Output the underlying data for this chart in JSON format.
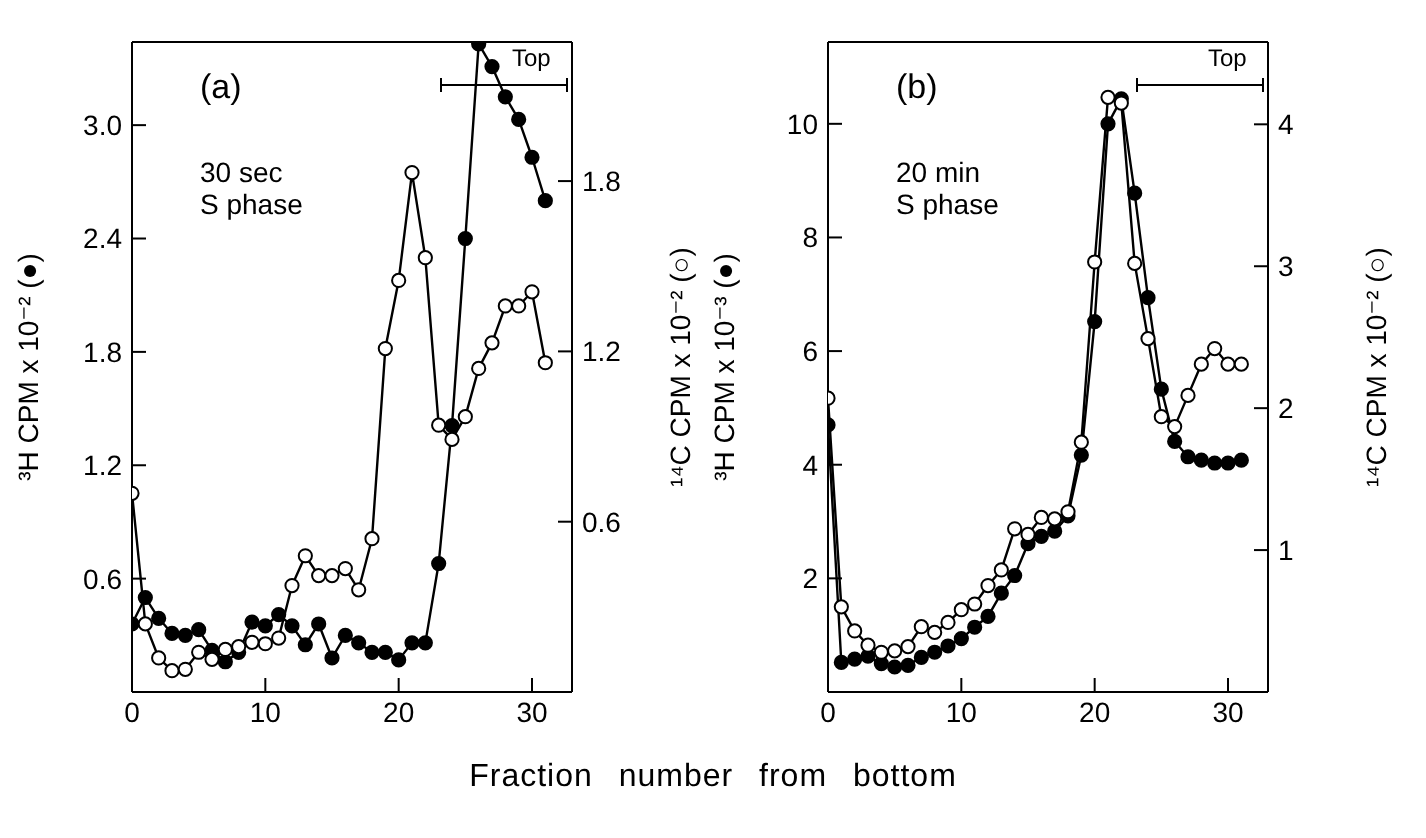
{
  "chart_data": [
    {
      "type": "line",
      "xlabel": "Fraction number from bottom",
      "ylabel": "³H CPM x 10⁻² (●)",
      "y2label": "¹⁴C CPM x 10⁻² (○)",
      "annotations": [
        "(a)",
        "30 sec\nS phase",
        "Top"
      ],
      "marker": "circle",
      "x": [
        0,
        1,
        2,
        3,
        4,
        5,
        6,
        7,
        8,
        9,
        10,
        11,
        12,
        13,
        14,
        15,
        16,
        17,
        18,
        19,
        20,
        21,
        22,
        23,
        24,
        25,
        26,
        27,
        28,
        29,
        30,
        31
      ],
      "series": [
        {
          "color": "#000000",
          "values": [
            0.36,
            0.5,
            0.39,
            0.31,
            0.3,
            0.33,
            0.22,
            0.16,
            0.21,
            0.37,
            0.35,
            0.41,
            0.35,
            0.25,
            0.36,
            0.18,
            0.3,
            0.26,
            0.21,
            0.21,
            0.17,
            0.26,
            0.26,
            0.68,
            1.41,
            2.4,
            3.43,
            3.31,
            3.15,
            3.03,
            2.83,
            2.6
          ]
        },
        {
          "color": "#000000",
          "axis": "y2",
          "values": [
            0.7,
            0.24,
            0.12,
            0.075,
            0.08,
            0.14,
            0.115,
            0.15,
            0.16,
            0.175,
            0.17,
            0.19,
            0.375,
            0.48,
            0.41,
            0.41,
            0.435,
            0.36,
            0.54,
            1.21,
            1.45,
            1.83,
            1.53,
            0.94,
            0.89,
            0.97,
            1.14,
            1.23,
            1.36,
            1.36,
            1.41,
            1.16
          ]
        }
      ],
      "xlim": [
        0,
        33
      ],
      "xticks": [
        0,
        10,
        20,
        30
      ],
      "ylim": [
        0,
        3.44
      ],
      "yticks": [
        0.6,
        1.2,
        1.8,
        2.4,
        {
          "value": 3,
          "label": "3.0"
        }
      ],
      "y2lim": [
        0,
        2.29
      ],
      "y2ticks": [
        0.6,
        1.2,
        1.8
      ]
    },
    {
      "type": "line",
      "ylabel": "³H CPM x 10⁻³ (●)",
      "y2label": "¹⁴C CPM x 10⁻² (○)",
      "annotations": [
        "(b)",
        "20 min\nS phase",
        "Top"
      ],
      "marker": "circle",
      "x": [
        0,
        1,
        2,
        3,
        4,
        5,
        6,
        7,
        8,
        9,
        10,
        11,
        12,
        13,
        14,
        15,
        16,
        17,
        18,
        19,
        20,
        21,
        22,
        23,
        24,
        25,
        26,
        27,
        28,
        29,
        30,
        31
      ],
      "series": [
        {
          "color": "#000000",
          "values": [
            4.7,
            0.52,
            0.58,
            0.63,
            0.5,
            0.44,
            0.47,
            0.61,
            0.7,
            0.81,
            0.94,
            1.14,
            1.33,
            1.74,
            2.05,
            2.61,
            2.74,
            2.83,
            3.1,
            4.17,
            6.52,
            10.0,
            10.44,
            8.78,
            6.94,
            5.33,
            4.41,
            4.14,
            4.08,
            4.03,
            4.03,
            4.08
          ]
        },
        {
          "color": "#000000",
          "axis": "y2",
          "values": [
            2.07,
            0.6,
            0.43,
            0.33,
            0.28,
            0.29,
            0.32,
            0.46,
            0.42,
            0.49,
            0.58,
            0.62,
            0.75,
            0.86,
            1.15,
            1.11,
            1.23,
            1.22,
            1.27,
            1.76,
            3.03,
            4.19,
            4.15,
            3.02,
            2.49,
            1.94,
            1.87,
            2.09,
            2.31,
            2.42,
            2.31,
            2.31
          ]
        }
      ],
      "xlim": [
        0,
        33
      ],
      "xticks": [
        0,
        10,
        20,
        30
      ],
      "ylim": [
        0,
        11.44
      ],
      "yticks": [
        2,
        4,
        6,
        8,
        10
      ],
      "y2lim": [
        0,
        4.58
      ],
      "y2ticks": [
        1,
        2,
        3,
        4
      ]
    }
  ]
}
